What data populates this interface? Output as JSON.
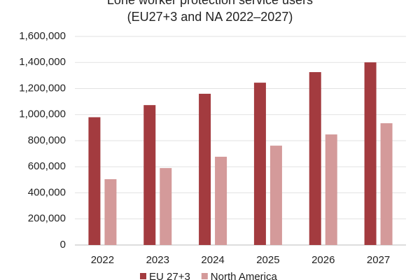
{
  "chart_data": {
    "type": "bar",
    "title": "Lone worker protection service users",
    "subtitle": "(EU27+3 and NA 2022–2027)",
    "categories": [
      "2022",
      "2023",
      "2024",
      "2025",
      "2026",
      "2027"
    ],
    "series": [
      {
        "name": "EU 27+3",
        "color": "#a33b3f",
        "values": [
          980000,
          1073000,
          1160000,
          1245000,
          1326000,
          1401000
        ]
      },
      {
        "name": "North America",
        "color": "#d49a9a",
        "values": [
          505000,
          590000,
          677000,
          762000,
          848000,
          934000
        ]
      }
    ],
    "ylim": [
      0,
      1600000
    ],
    "yticks": [
      0,
      {
        "value": 200000,
        "label": "200,000"
      },
      {
        "value": 400000,
        "label": "400,000"
      },
      {
        "value": 600000,
        "label": "600,000"
      },
      {
        "value": 800000,
        "label": "800,000"
      },
      {
        "value": 1000000,
        "label": "1,000,000"
      },
      {
        "value": 1200000,
        "label": "1,200,000"
      },
      {
        "value": 1400000,
        "label": "1,400,000"
      },
      {
        "value": 1600000,
        "label": "1,600,000"
      }
    ],
    "grid": true,
    "legend": "bottom"
  }
}
